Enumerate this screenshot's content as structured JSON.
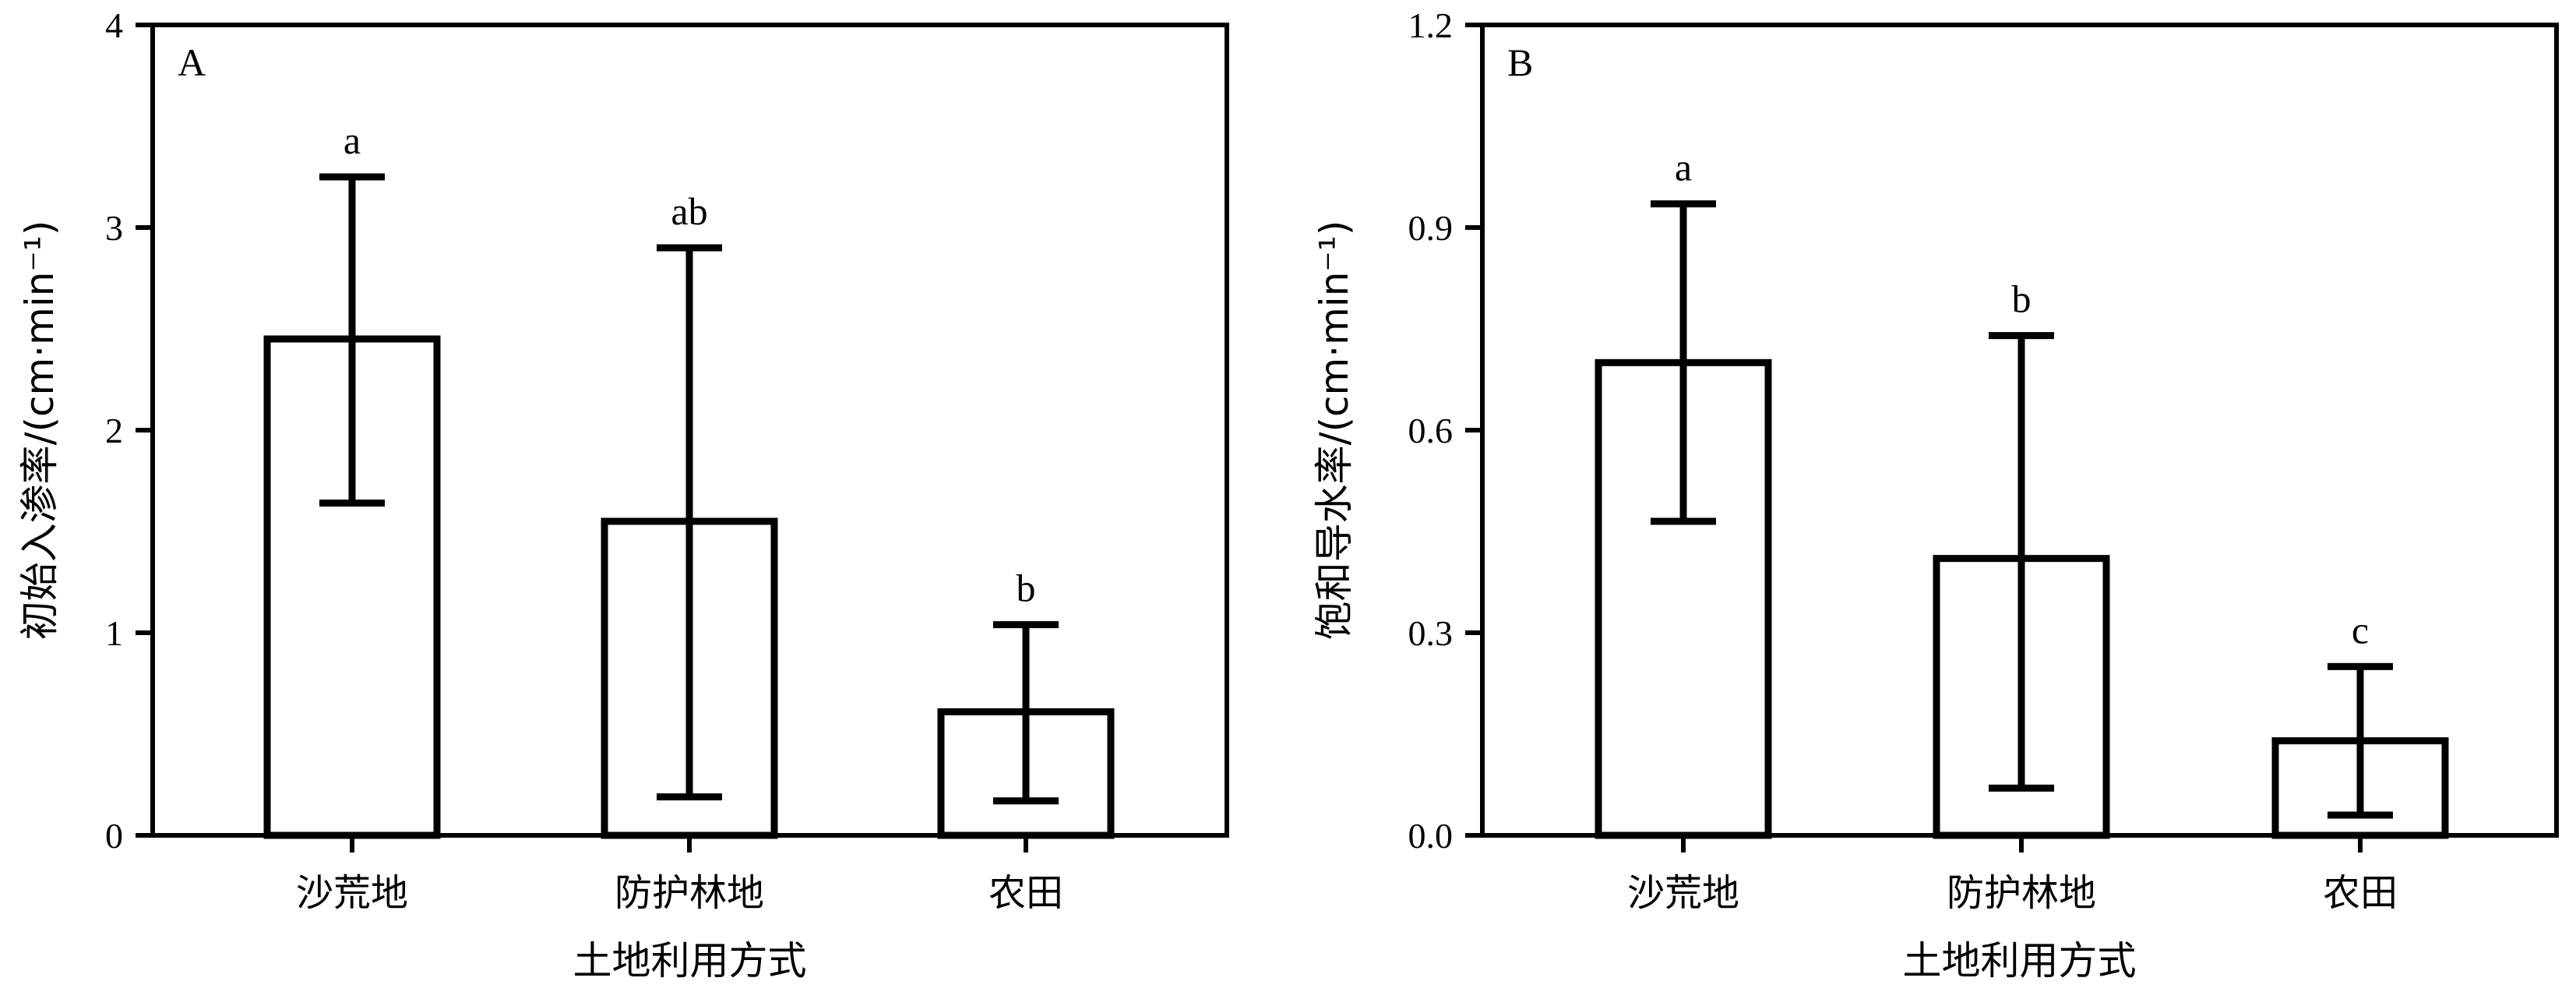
{
  "chart_data": [
    {
      "type": "bar",
      "panel_label": "A",
      "categories": [
        "沙荒地",
        "防护林地",
        "农田"
      ],
      "values": [
        2.45,
        1.55,
        0.61
      ],
      "error_upper": [
        3.25,
        2.9,
        1.04
      ],
      "error_lower": [
        1.64,
        0.19,
        0.17
      ],
      "significance": [
        "a",
        "ab",
        "b"
      ],
      "xlabel": "土地利用方式",
      "ylabel": "初始入渗率/(cm·min⁻¹)",
      "ylim": [
        0,
        4
      ],
      "yticks": [
        "0",
        "1",
        "2",
        "3",
        "4"
      ],
      "ytick_values": [
        0,
        1,
        2,
        3,
        4
      ]
    },
    {
      "type": "bar",
      "panel_label": "B",
      "categories": [
        "沙荒地",
        "防护林地",
        "农田"
      ],
      "values": [
        0.7,
        0.41,
        0.14
      ],
      "error_upper": [
        0.935,
        0.74,
        0.25
      ],
      "error_lower": [
        0.465,
        0.07,
        0.03
      ],
      "significance": [
        "a",
        "b",
        "c"
      ],
      "xlabel": "土地利用方式",
      "ylabel": "饱和导水率/(cm·min⁻¹)",
      "ylim": [
        0,
        1.2
      ],
      "yticks": [
        "0.0",
        "0.3",
        "0.6",
        "0.9",
        "1.2"
      ],
      "ytick_values": [
        0,
        0.3,
        0.6,
        0.9,
        1.2
      ]
    }
  ]
}
